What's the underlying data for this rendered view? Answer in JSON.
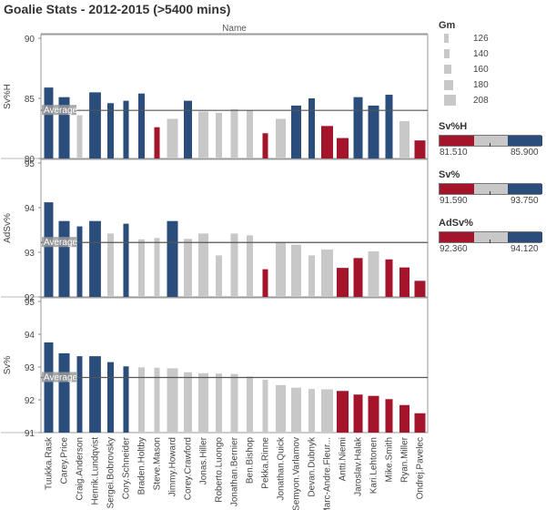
{
  "title": "Goalie Stats - 2012-2015 (>5400 mins)",
  "header_label": "Name",
  "colors": {
    "high": "#2a4d7c",
    "mid": "#c8c8c8",
    "low": "#a4152c"
  },
  "legend": {
    "size": {
      "title": "Gm",
      "items": [
        "126",
        "140",
        "160",
        "180",
        "208"
      ]
    },
    "color": [
      {
        "title": "Sv%H",
        "min": "81.510",
        "max": "85.900"
      },
      {
        "title": "Sv%",
        "min": "91.590",
        "max": "93.750"
      },
      {
        "title": "AdSv%",
        "min": "92.360",
        "max": "94.120"
      }
    ]
  },
  "chart_data": {
    "type": "bar",
    "categories": [
      "Tuukka.Rask",
      "Carey.Price",
      "Craig.Anderson",
      "Henrik.Lundqvist",
      "Sergei.Bobrovsky",
      "Cory.Schneider",
      "Braden.Holtby",
      "Steve.Mason",
      "Jimmy.Howard",
      "Corey.Crawford",
      "Jonas.Hiller",
      "Roberto.Luongo",
      "Jonathan.Bernier",
      "Ben.Bishop",
      "Pekka.Rinne",
      "Jonathan.Quick",
      "Semyon.Varlamov",
      "Devan.Dubnyk",
      "Marc-Andre.Fleur...",
      "Antti.Niemi",
      "Jaroslav.Halak",
      "Kari.Lehtonen",
      "Mike.Smith",
      "Ryan.Miller",
      "Ondrej.Pavelec"
    ],
    "games": [
      180,
      200,
      140,
      208,
      150,
      140,
      150,
      140,
      200,
      170,
      190,
      150,
      160,
      150,
      140,
      190,
      190,
      150,
      210,
      210,
      180,
      200,
      160,
      190,
      200
    ],
    "panels": [
      {
        "ylabel": "Sv%H",
        "ylim": [
          80,
          90
        ],
        "ticks": [
          "80",
          "85",
          "90"
        ],
        "average": 84.0,
        "average_label": "Average",
        "values": [
          85.9,
          85.1,
          83.6,
          85.5,
          84.6,
          84.8,
          85.4,
          82.6,
          83.3,
          84.8,
          83.9,
          83.8,
          84.1,
          84.0,
          82.1,
          83.3,
          84.4,
          85.0,
          82.7,
          81.7,
          85.1,
          84.4,
          85.3,
          83.1,
          81.5
        ],
        "levels": [
          "high",
          "high",
          "mid",
          "high",
          "high",
          "high",
          "high",
          "low",
          "mid",
          "high",
          "mid",
          "mid",
          "mid",
          "mid",
          "low",
          "mid",
          "high",
          "high",
          "low",
          "low",
          "high",
          "high",
          "high",
          "mid",
          "low"
        ]
      },
      {
        "ylabel": "AdSv%",
        "ylim": [
          92,
          95
        ],
        "ticks": [
          "92",
          "93",
          "94",
          "95"
        ],
        "average": 93.22,
        "average_label": "Average",
        "values": [
          94.12,
          93.7,
          93.58,
          93.7,
          93.42,
          93.64,
          93.29,
          93.32,
          93.7,
          93.3,
          93.42,
          92.93,
          93.42,
          93.38,
          92.62,
          93.23,
          93.17,
          92.93,
          93.06,
          92.65,
          92.87,
          93.02,
          92.84,
          92.66,
          92.36
        ],
        "levels": [
          "high",
          "high",
          "high",
          "high",
          "mid",
          "high",
          "mid",
          "mid",
          "high",
          "mid",
          "mid",
          "mid",
          "mid",
          "mid",
          "low",
          "mid",
          "mid",
          "mid",
          "mid",
          "low",
          "low",
          "mid",
          "low",
          "low",
          "low"
        ]
      },
      {
        "ylabel": "Sv%",
        "ylim": [
          91,
          95
        ],
        "ticks": [
          "91",
          "92",
          "93",
          "94",
          "95"
        ],
        "average": 92.68,
        "average_label": "Average",
        "values": [
          93.75,
          93.42,
          93.33,
          93.33,
          93.15,
          93.02,
          92.99,
          92.98,
          92.96,
          92.84,
          92.81,
          92.8,
          92.79,
          92.71,
          92.61,
          92.45,
          92.37,
          92.33,
          92.32,
          92.27,
          92.16,
          92.12,
          92.02,
          91.84,
          91.59
        ],
        "levels": [
          "high",
          "high",
          "high",
          "high",
          "high",
          "high",
          "mid",
          "mid",
          "mid",
          "mid",
          "mid",
          "mid",
          "mid",
          "mid",
          "mid",
          "mid",
          "mid",
          "mid",
          "mid",
          "low",
          "low",
          "low",
          "low",
          "low",
          "low"
        ]
      }
    ]
  }
}
